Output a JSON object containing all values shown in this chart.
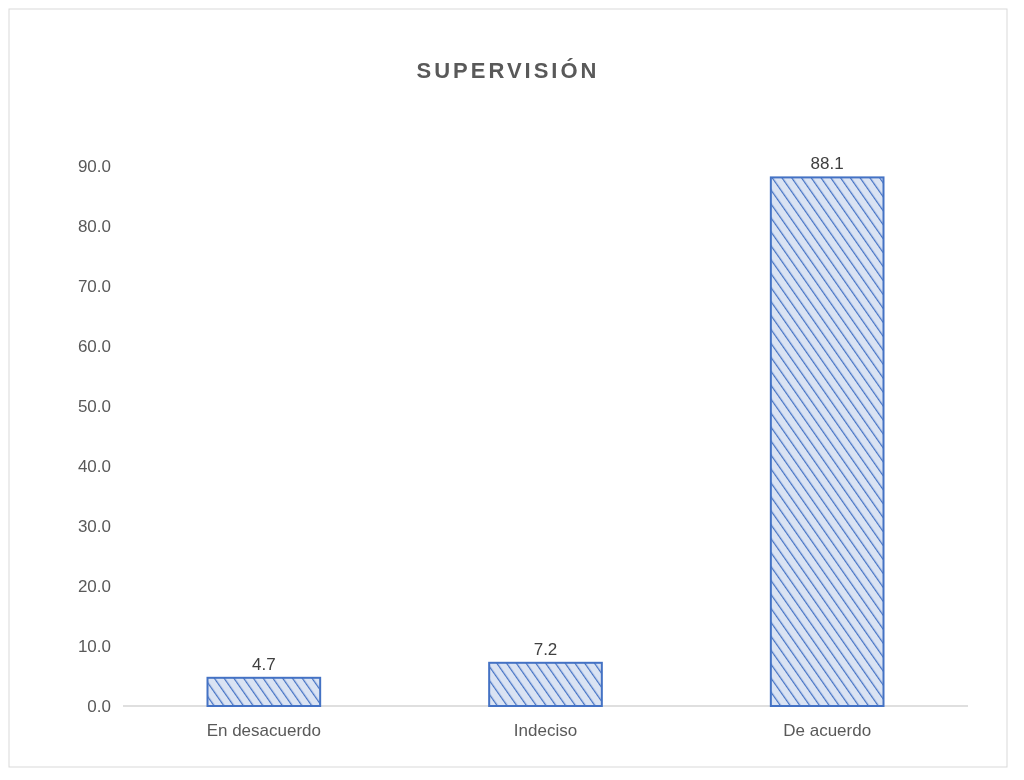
{
  "chart_data": {
    "type": "bar",
    "title": "SUPERVISIÓN",
    "categories": [
      "En desacuerdo",
      "Indeciso",
      "De acuerdo"
    ],
    "values": [
      4.7,
      7.2,
      88.1
    ],
    "color": "#4472c4",
    "ylim": [
      0,
      90
    ],
    "yticks": [
      {
        "value": 0,
        "label": "0.0"
      },
      {
        "value": 10,
        "label": "10.0"
      },
      {
        "value": 20,
        "label": "20.0"
      },
      {
        "value": 30,
        "label": "30.0"
      },
      {
        "value": 40,
        "label": "40.0"
      },
      {
        "value": 50,
        "label": "50.0"
      },
      {
        "value": 60,
        "label": "60.0"
      },
      {
        "value": 70,
        "label": "70.0"
      },
      {
        "value": 80,
        "label": "80.0"
      },
      {
        "value": 90,
        "label": "90.0"
      }
    ],
    "data_labels": true,
    "grid": false
  }
}
